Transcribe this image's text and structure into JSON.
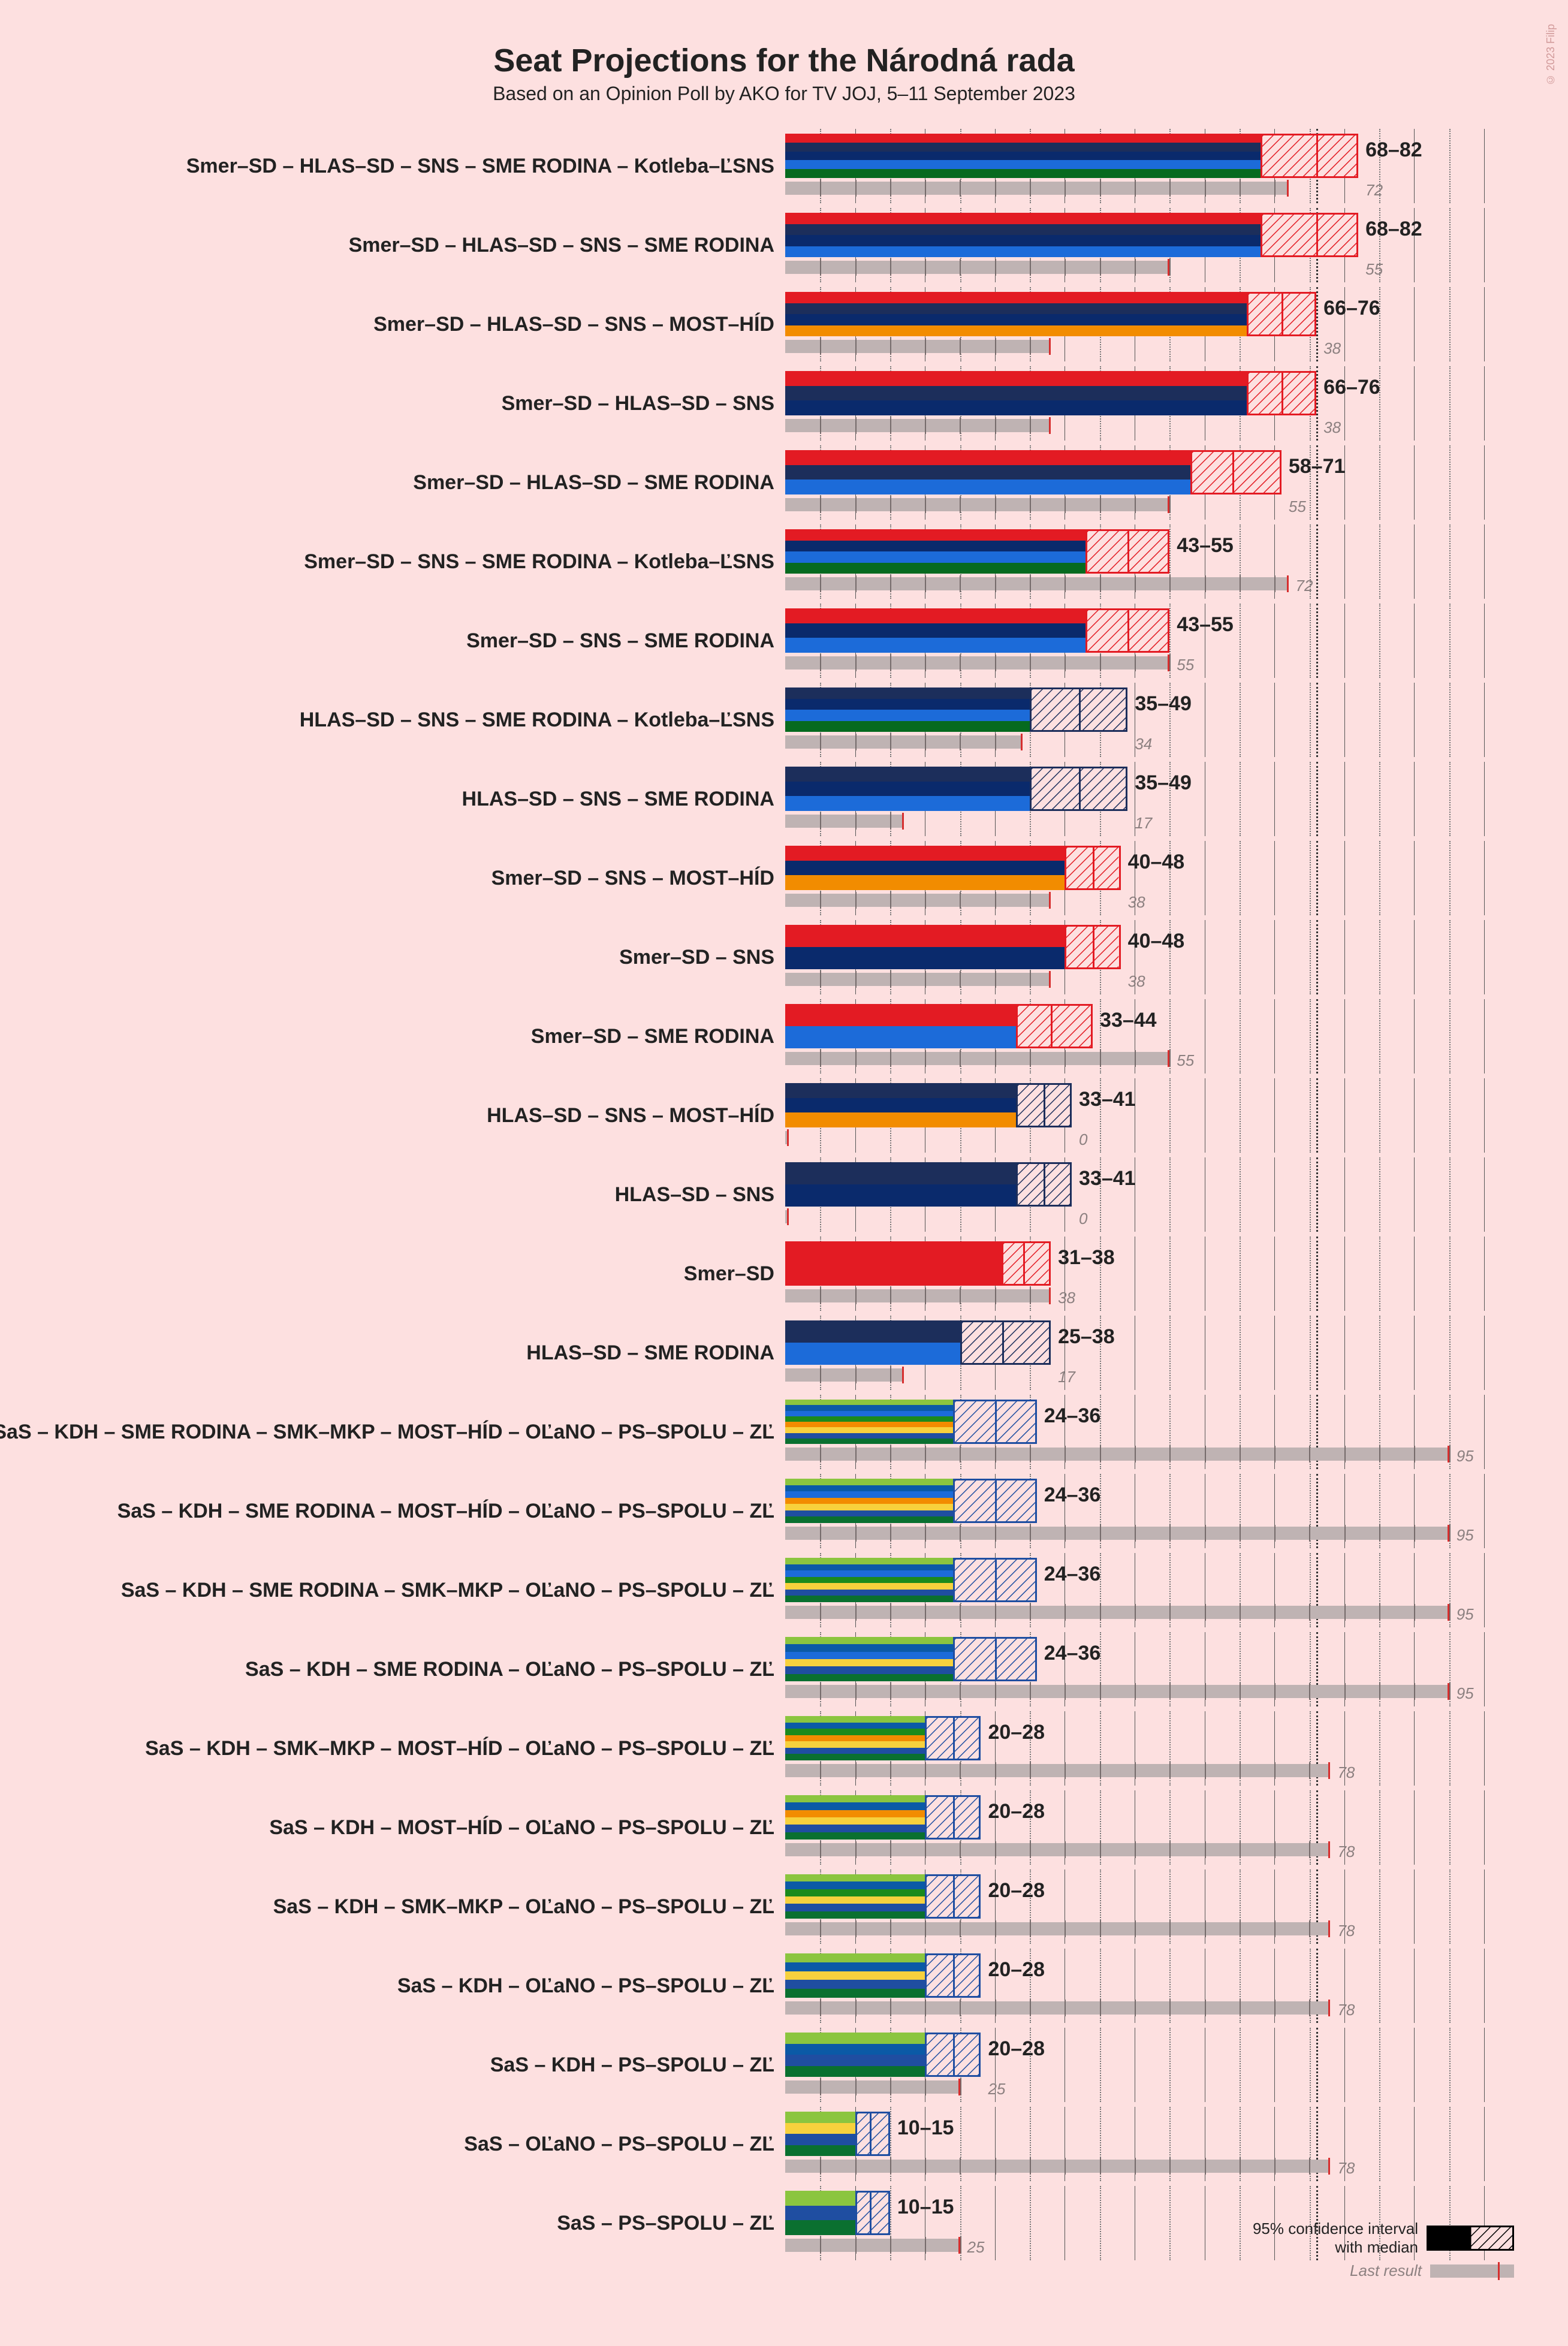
{
  "title": "Seat Projections for the Národná rada",
  "subtitle": "Based on an Opinion Poll by AKO for TV JOJ, 5–11 September 2023",
  "copyright": "© 2023 Filip",
  "axis": {
    "max": 100,
    "majority_at": 76,
    "gridlines_major": [
      10,
      20,
      30,
      40,
      50,
      60,
      70,
      80,
      90,
      100
    ],
    "gridlines_minor": [
      5,
      15,
      25,
      35,
      45,
      55,
      65,
      75,
      85,
      95
    ],
    "major_color": "#555555",
    "minor_color": "#777777",
    "thick_color": "#323232"
  },
  "party_colors": {
    "Smer-SD": "#e31b23",
    "HLAS-SD": "#1c2e5b",
    "SNS": "#0a2a6c",
    "SME RODINA": "#1c6bd9",
    "Kotleba-LSNS": "#066a1f",
    "MOST-HID": "#f28c00",
    "SaS": "#8bc53f",
    "KDH": "#0b5aa6",
    "SMK-MKP": "#1c8a1c",
    "OLaNO": "#f7d13d",
    "PS-SPOLU": "#1f4ea1",
    "ZL": "#0a7030"
  },
  "ci_style": {
    "hatch_stroke_width": 3,
    "hatch_spacing": 12
  },
  "last_result_style": {
    "bar_color": "#bfb3b3",
    "tick_color": "#d62e2e",
    "label_color": "#8c8080"
  },
  "legend": {
    "ci_label_top": "95% confidence interval",
    "ci_label_bottom": "with median",
    "last_label": "Last result"
  },
  "rows": [
    {
      "label": "Smer–SD – HLAS–SD – SNS – SME RODINA – Kotleba–ĽSNS",
      "parties": [
        "Smer-SD",
        "HLAS-SD",
        "SNS",
        "SME RODINA",
        "Kotleba-LSNS"
      ],
      "lo": 68,
      "hi": 82,
      "median": 76,
      "last": 72,
      "ci_color": "#e31b23"
    },
    {
      "label": "Smer–SD – HLAS–SD – SNS – SME RODINA",
      "parties": [
        "Smer-SD",
        "HLAS-SD",
        "SNS",
        "SME RODINA"
      ],
      "lo": 68,
      "hi": 82,
      "median": 76,
      "last": 55,
      "ci_color": "#e31b23"
    },
    {
      "label": "Smer–SD – HLAS–SD – SNS – MOST–HÍD",
      "parties": [
        "Smer-SD",
        "HLAS-SD",
        "SNS",
        "MOST-HID"
      ],
      "lo": 66,
      "hi": 76,
      "median": 71,
      "last": 38,
      "ci_color": "#e31b23"
    },
    {
      "label": "Smer–SD – HLAS–SD – SNS",
      "parties": [
        "Smer-SD",
        "HLAS-SD",
        "SNS"
      ],
      "lo": 66,
      "hi": 76,
      "median": 71,
      "last": 38,
      "ci_color": "#e31b23"
    },
    {
      "label": "Smer–SD – HLAS–SD – SME RODINA",
      "parties": [
        "Smer-SD",
        "HLAS-SD",
        "SME RODINA"
      ],
      "lo": 58,
      "hi": 71,
      "median": 64,
      "last": 55,
      "ci_color": "#e31b23"
    },
    {
      "label": "Smer–SD – SNS – SME RODINA – Kotleba–ĽSNS",
      "parties": [
        "Smer-SD",
        "SNS",
        "SME RODINA",
        "Kotleba-LSNS"
      ],
      "lo": 43,
      "hi": 55,
      "median": 49,
      "last": 72,
      "ci_color": "#e31b23"
    },
    {
      "label": "Smer–SD – SNS – SME RODINA",
      "parties": [
        "Smer-SD",
        "SNS",
        "SME RODINA"
      ],
      "lo": 43,
      "hi": 55,
      "median": 49,
      "last": 55,
      "ci_color": "#e31b23"
    },
    {
      "label": "HLAS–SD – SNS – SME RODINA – Kotleba–ĽSNS",
      "parties": [
        "HLAS-SD",
        "SNS",
        "SME RODINA",
        "Kotleba-LSNS"
      ],
      "lo": 35,
      "hi": 49,
      "median": 42,
      "last": 34,
      "ci_color": "#1c2e5b"
    },
    {
      "label": "HLAS–SD – SNS – SME RODINA",
      "parties": [
        "HLAS-SD",
        "SNS",
        "SME RODINA"
      ],
      "lo": 35,
      "hi": 49,
      "median": 42,
      "last": 17,
      "ci_color": "#1c2e5b"
    },
    {
      "label": "Smer–SD – SNS – MOST–HÍD",
      "parties": [
        "Smer-SD",
        "SNS",
        "MOST-HID"
      ],
      "lo": 40,
      "hi": 48,
      "median": 44,
      "last": 38,
      "ci_color": "#e31b23"
    },
    {
      "label": "Smer–SD – SNS",
      "parties": [
        "Smer-SD",
        "SNS"
      ],
      "lo": 40,
      "hi": 48,
      "median": 44,
      "last": 38,
      "ci_color": "#e31b23"
    },
    {
      "label": "Smer–SD – SME RODINA",
      "parties": [
        "Smer-SD",
        "SME RODINA"
      ],
      "lo": 33,
      "hi": 44,
      "median": 38,
      "last": 55,
      "ci_color": "#e31b23"
    },
    {
      "label": "HLAS–SD – SNS – MOST–HÍD",
      "parties": [
        "HLAS-SD",
        "SNS",
        "MOST-HID"
      ],
      "lo": 33,
      "hi": 41,
      "median": 37,
      "last": 0,
      "ci_color": "#1c2e5b"
    },
    {
      "label": "HLAS–SD – SNS",
      "parties": [
        "HLAS-SD",
        "SNS"
      ],
      "lo": 33,
      "hi": 41,
      "median": 37,
      "last": 0,
      "ci_color": "#1c2e5b"
    },
    {
      "label": "Smer–SD",
      "parties": [
        "Smer-SD"
      ],
      "lo": 31,
      "hi": 38,
      "median": 34,
      "last": 38,
      "ci_color": "#e31b23"
    },
    {
      "label": "HLAS–SD – SME RODINA",
      "parties": [
        "HLAS-SD",
        "SME RODINA"
      ],
      "lo": 25,
      "hi": 38,
      "median": 31,
      "last": 17,
      "ci_color": "#1c2e5b"
    },
    {
      "label": "SaS – KDH – SME RODINA – SMK–MKP – MOST–HÍD – OĽaNO – PS–SPOLU – ZĽ",
      "parties": [
        "SaS",
        "KDH",
        "SME RODINA",
        "SMK-MKP",
        "MOST-HID",
        "OLaNO",
        "PS-SPOLU",
        "ZL"
      ],
      "lo": 24,
      "hi": 36,
      "median": 30,
      "last": 95,
      "ci_color": "#1f4ea1"
    },
    {
      "label": "SaS – KDH – SME RODINA – MOST–HÍD – OĽaNO – PS–SPOLU – ZĽ",
      "parties": [
        "SaS",
        "KDH",
        "SME RODINA",
        "MOST-HID",
        "OLaNO",
        "PS-SPOLU",
        "ZL"
      ],
      "lo": 24,
      "hi": 36,
      "median": 30,
      "last": 95,
      "ci_color": "#1f4ea1"
    },
    {
      "label": "SaS – KDH – SME RODINA – SMK–MKP – OĽaNO – PS–SPOLU – ZĽ",
      "parties": [
        "SaS",
        "KDH",
        "SME RODINA",
        "SMK-MKP",
        "OLaNO",
        "PS-SPOLU",
        "ZL"
      ],
      "lo": 24,
      "hi": 36,
      "median": 30,
      "last": 95,
      "ci_color": "#1f4ea1"
    },
    {
      "label": "SaS – KDH – SME RODINA – OĽaNO – PS–SPOLU – ZĽ",
      "parties": [
        "SaS",
        "KDH",
        "SME RODINA",
        "OLaNO",
        "PS-SPOLU",
        "ZL"
      ],
      "lo": 24,
      "hi": 36,
      "median": 30,
      "last": 95,
      "ci_color": "#1f4ea1"
    },
    {
      "label": "SaS – KDH – SMK–MKP – MOST–HÍD – OĽaNO – PS–SPOLU – ZĽ",
      "parties": [
        "SaS",
        "KDH",
        "SMK-MKP",
        "MOST-HID",
        "OLaNO",
        "PS-SPOLU",
        "ZL"
      ],
      "lo": 20,
      "hi": 28,
      "median": 24,
      "last": 78,
      "ci_color": "#1f4ea1"
    },
    {
      "label": "SaS – KDH – MOST–HÍD – OĽaNO – PS–SPOLU – ZĽ",
      "parties": [
        "SaS",
        "KDH",
        "MOST-HID",
        "OLaNO",
        "PS-SPOLU",
        "ZL"
      ],
      "lo": 20,
      "hi": 28,
      "median": 24,
      "last": 78,
      "ci_color": "#1f4ea1"
    },
    {
      "label": "SaS – KDH – SMK–MKP – OĽaNO – PS–SPOLU – ZĽ",
      "parties": [
        "SaS",
        "KDH",
        "SMK-MKP",
        "OLaNO",
        "PS-SPOLU",
        "ZL"
      ],
      "lo": 20,
      "hi": 28,
      "median": 24,
      "last": 78,
      "ci_color": "#1f4ea1"
    },
    {
      "label": "SaS – KDH – OĽaNO – PS–SPOLU – ZĽ",
      "parties": [
        "SaS",
        "KDH",
        "OLaNO",
        "PS-SPOLU",
        "ZL"
      ],
      "lo": 20,
      "hi": 28,
      "median": 24,
      "last": 78,
      "ci_color": "#1f4ea1"
    },
    {
      "label": "SaS – KDH – PS–SPOLU – ZĽ",
      "parties": [
        "SaS",
        "KDH",
        "PS-SPOLU",
        "ZL"
      ],
      "lo": 20,
      "hi": 28,
      "median": 24,
      "last": 25,
      "ci_color": "#1f4ea1"
    },
    {
      "label": "SaS – OĽaNO – PS–SPOLU – ZĽ",
      "parties": [
        "SaS",
        "OLaNO",
        "PS-SPOLU",
        "ZL"
      ],
      "lo": 10,
      "hi": 15,
      "median": 12,
      "last": 78,
      "ci_color": "#1f4ea1"
    },
    {
      "label": "SaS – PS–SPOLU – ZĽ",
      "parties": [
        "SaS",
        "PS-SPOLU",
        "ZL"
      ],
      "lo": 10,
      "hi": 15,
      "median": 12,
      "last": 25,
      "ci_color": "#1f4ea1"
    }
  ]
}
